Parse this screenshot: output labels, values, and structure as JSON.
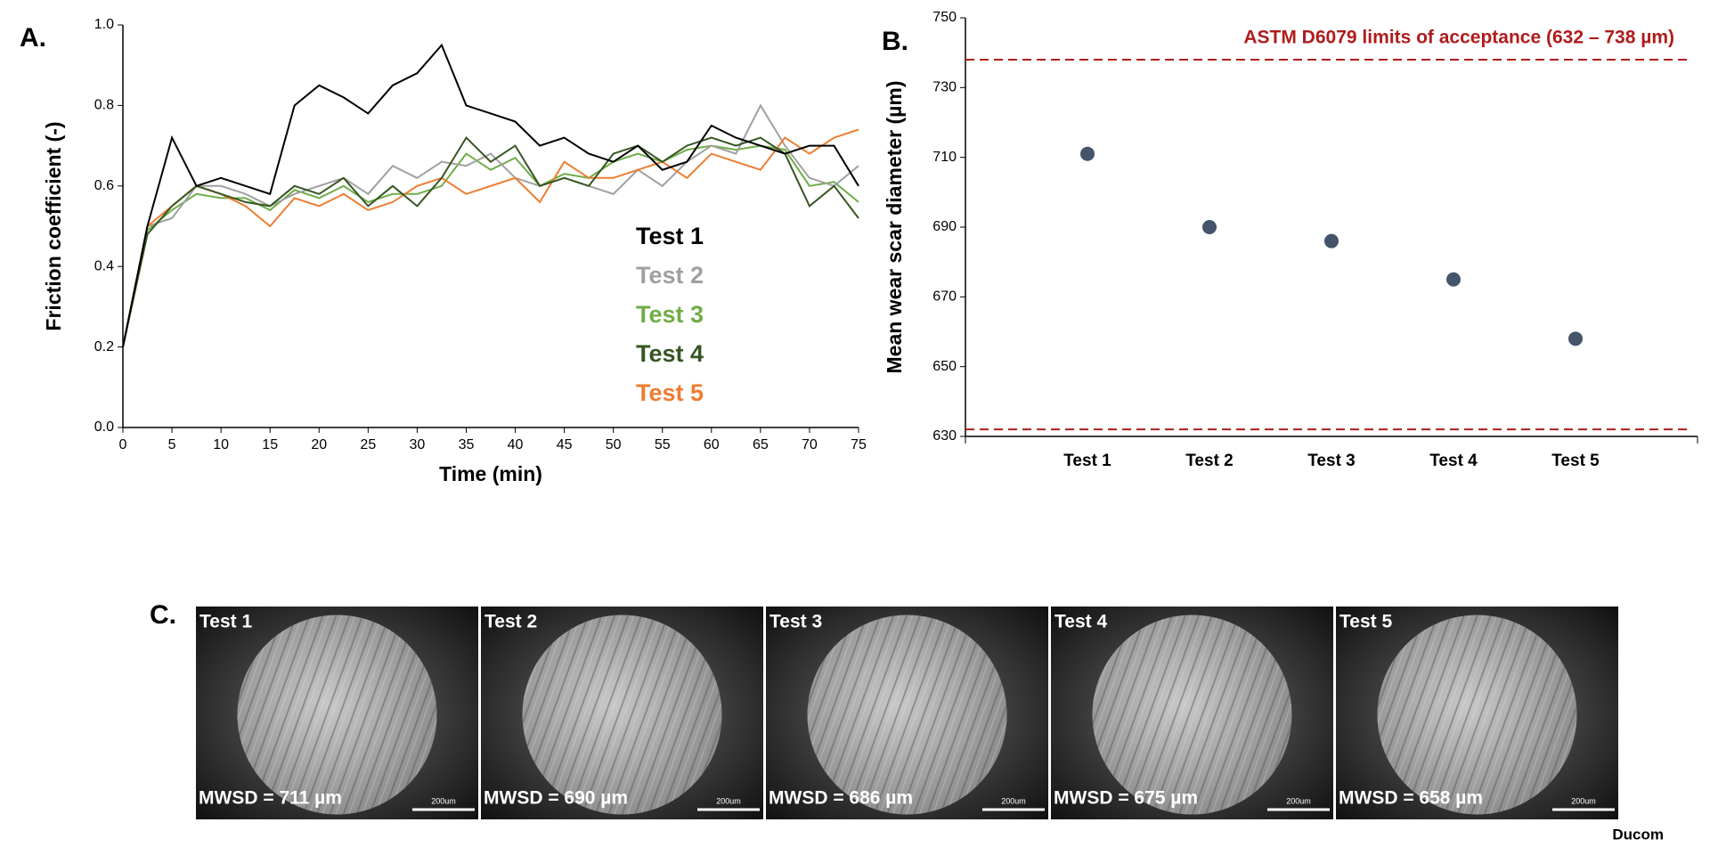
{
  "panel_labels": [
    "A.",
    "B.",
    "C."
  ],
  "chart_data": [
    {
      "type": "line",
      "xlabel": "Time (min)",
      "ylabel": "Friction coefficient (-)",
      "x": [
        0,
        2.5,
        5,
        7.5,
        10,
        12.5,
        15,
        17.5,
        20,
        22.5,
        25,
        27.5,
        30,
        32.5,
        35,
        37.5,
        40,
        42.5,
        45,
        47.5,
        50,
        52.5,
        55,
        57.5,
        60,
        62.5,
        65,
        67.5,
        70,
        72.5,
        75
      ],
      "xlim": [
        0,
        75
      ],
      "xticks": [
        0,
        5,
        10,
        15,
        20,
        25,
        30,
        35,
        40,
        45,
        50,
        55,
        60,
        65,
        70,
        75
      ],
      "ylim": [
        0,
        1
      ],
      "yticks": [
        {
          "value": 0,
          "label": "0.0"
        },
        0.2,
        0.4,
        0.6,
        0.8,
        {
          "value": 1,
          "label": "1.0"
        }
      ],
      "series": [
        {
          "name": "Test 1",
          "color": "#000000",
          "values": [
            0.2,
            0.5,
            0.72,
            0.6,
            0.62,
            0.6,
            0.58,
            0.8,
            0.85,
            0.82,
            0.78,
            0.85,
            0.88,
            0.95,
            0.8,
            0.78,
            0.76,
            0.7,
            0.72,
            0.68,
            0.66,
            0.7,
            0.64,
            0.66,
            0.75,
            0.72,
            0.7,
            0.68,
            0.7,
            0.7,
            0.6
          ]
        },
        {
          "name": "Test 2",
          "color": "#a0a0a0",
          "values": [
            0.2,
            0.5,
            0.52,
            0.6,
            0.6,
            0.58,
            0.55,
            0.58,
            0.6,
            0.62,
            0.58,
            0.65,
            0.62,
            0.66,
            0.65,
            0.68,
            0.62,
            0.6,
            0.62,
            0.6,
            0.58,
            0.64,
            0.6,
            0.66,
            0.7,
            0.68,
            0.8,
            0.7,
            0.62,
            0.6,
            0.65
          ]
        },
        {
          "name": "Test 3",
          "color": "#70ad47",
          "values": [
            0.2,
            0.49,
            0.54,
            0.58,
            0.57,
            0.57,
            0.54,
            0.59,
            0.57,
            0.6,
            0.56,
            0.58,
            0.58,
            0.6,
            0.68,
            0.64,
            0.67,
            0.6,
            0.63,
            0.62,
            0.66,
            0.68,
            0.66,
            0.69,
            0.7,
            0.69,
            0.7,
            0.69,
            0.6,
            0.61,
            0.56
          ]
        },
        {
          "name": "Test 4",
          "color": "#375623",
          "values": [
            0.2,
            0.48,
            0.55,
            0.6,
            0.58,
            0.56,
            0.55,
            0.6,
            0.58,
            0.62,
            0.55,
            0.6,
            0.55,
            0.62,
            0.72,
            0.66,
            0.7,
            0.6,
            0.62,
            0.6,
            0.68,
            0.7,
            0.66,
            0.7,
            0.72,
            0.7,
            0.72,
            0.68,
            0.55,
            0.6,
            0.52
          ]
        },
        {
          "name": "Test 5",
          "color": "#ed7d31",
          "values": [
            0.2,
            0.5,
            0.55,
            0.6,
            0.58,
            0.55,
            0.5,
            0.57,
            0.55,
            0.58,
            0.54,
            0.56,
            0.6,
            0.62,
            0.58,
            0.6,
            0.62,
            0.56,
            0.66,
            0.62,
            0.62,
            0.64,
            0.66,
            0.62,
            0.68,
            0.66,
            0.64,
            0.72,
            0.68,
            0.72,
            0.74
          ]
        }
      ]
    },
    {
      "type": "scatter",
      "ylabel": "Mean wear scar diameter (µm)",
      "categories": [
        "Test 1",
        "Test 2",
        "Test 3",
        "Test 4",
        "Test 5"
      ],
      "values": [
        711,
        690,
        686,
        675,
        658
      ],
      "color": "#44546a",
      "ylim": [
        630,
        750
      ],
      "yticks": [
        630,
        650,
        670,
        690,
        710,
        730,
        750
      ],
      "reference_lines": [
        632,
        738
      ],
      "reference_color": "#b01c1c",
      "annotation": "ASTM D6079 limits of acceptance (632 – 738 µm)"
    }
  ],
  "images": [
    {
      "title": "Test 1",
      "caption": "MWSD = 711 µm",
      "scale": "200um"
    },
    {
      "title": "Test 2",
      "caption": "MWSD = 690 µm",
      "scale": "200um"
    },
    {
      "title": "Test 3",
      "caption": "MWSD = 686 µm",
      "scale": "200um"
    },
    {
      "title": "Test 4",
      "caption": "MWSD = 675 µm",
      "scale": "200um"
    },
    {
      "title": "Test 5",
      "caption": "MWSD = 658 µm",
      "scale": "200um"
    }
  ],
  "credit": "Ducom"
}
